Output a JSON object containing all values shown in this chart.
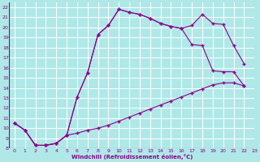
{
  "xlabel": "Windchill (Refroidissement éolien,°C)",
  "bg_color": "#b0e8e8",
  "line_color": "#8b008b",
  "grid_color": "#c8e8e8",
  "xlim": [
    -0.5,
    23
  ],
  "ylim": [
    8,
    22.5
  ],
  "xticks": [
    0,
    1,
    2,
    3,
    4,
    5,
    6,
    7,
    8,
    9,
    10,
    11,
    12,
    13,
    14,
    15,
    16,
    17,
    18,
    19,
    20,
    21,
    22,
    23
  ],
  "yticks": [
    8,
    9,
    10,
    11,
    12,
    13,
    14,
    15,
    16,
    17,
    18,
    19,
    20,
    21,
    22
  ],
  "line1_x": [
    0,
    1,
    2,
    3,
    4,
    5,
    6,
    7,
    8,
    9,
    10,
    11,
    12,
    13,
    14,
    15,
    16,
    17,
    18,
    19,
    20,
    21,
    22
  ],
  "line1_y": [
    10.5,
    9.8,
    8.3,
    8.3,
    8.5,
    9.3,
    13.1,
    15.5,
    19.3,
    20.2,
    21.8,
    21.5,
    21.3,
    20.9,
    20.4,
    20.1,
    19.9,
    20.2,
    21.3,
    20.4,
    20.3,
    18.2,
    16.4
  ],
  "line2_x": [
    0,
    1,
    2,
    3,
    4,
    5,
    6,
    7,
    8,
    9,
    10,
    11,
    12,
    13,
    14,
    15,
    16,
    17,
    18,
    19,
    20,
    21,
    22
  ],
  "line2_y": [
    10.5,
    9.8,
    8.3,
    8.3,
    8.5,
    9.3,
    9.5,
    9.8,
    10.0,
    10.3,
    10.7,
    11.1,
    11.5,
    11.9,
    12.3,
    12.7,
    13.1,
    13.5,
    13.9,
    14.3,
    14.5,
    14.5,
    14.2
  ],
  "line3_x": [
    0,
    1,
    2,
    3,
    4,
    5,
    6,
    7,
    8,
    9,
    10,
    11,
    12,
    13,
    14,
    15,
    16,
    17,
    18,
    19,
    20,
    21,
    22
  ],
  "line3_y": [
    10.5,
    9.8,
    8.3,
    8.3,
    8.5,
    9.3,
    13.1,
    15.5,
    19.3,
    20.2,
    21.8,
    21.5,
    21.3,
    20.9,
    20.4,
    20.1,
    19.9,
    18.3,
    18.2,
    15.7,
    15.6,
    15.6,
    14.2
  ]
}
